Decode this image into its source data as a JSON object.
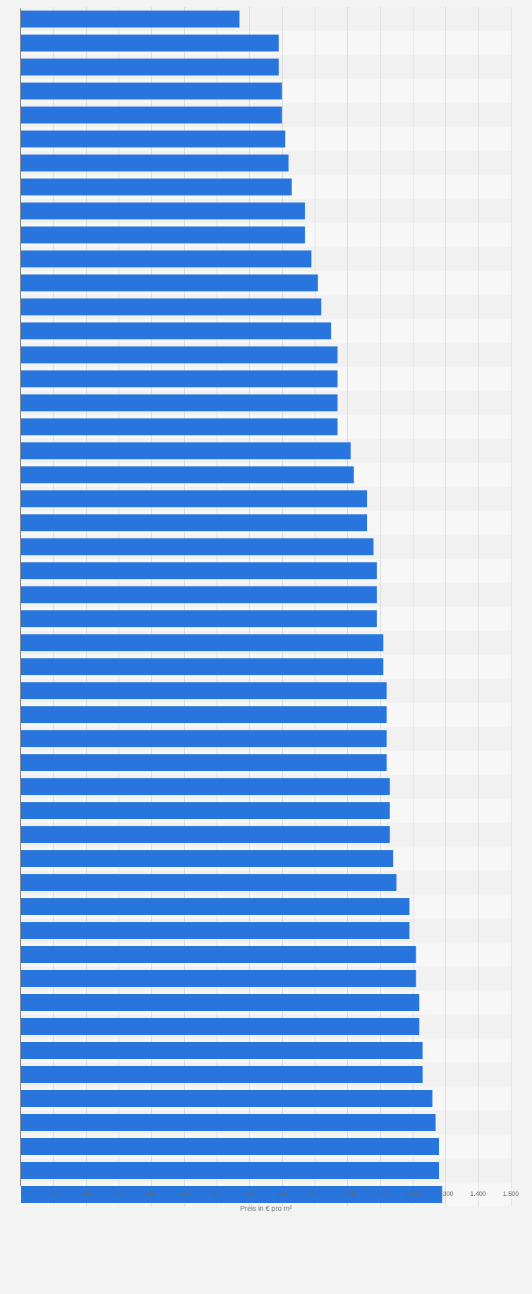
{
  "chart_data": {
    "type": "bar",
    "orientation": "horizontal",
    "xlabel": "Preis in € pro m²",
    "ylabel": "",
    "xlim": [
      0,
      1500
    ],
    "x_ticks": [
      {
        "value": 0,
        "label": "0"
      },
      {
        "value": 100,
        "label": "100"
      },
      {
        "value": 200,
        "label": "200"
      },
      {
        "value": 300,
        "label": "300"
      },
      {
        "value": 400,
        "label": "400"
      },
      {
        "value": 500,
        "label": "500"
      },
      {
        "value": 600,
        "label": "600"
      },
      {
        "value": 700,
        "label": "700"
      },
      {
        "value": 800,
        "label": "800"
      },
      {
        "value": 900,
        "label": "900"
      },
      {
        "value": 1000,
        "label": "1.000"
      },
      {
        "value": 1100,
        "label": "1.100"
      },
      {
        "value": 1200,
        "label": "1.200"
      },
      {
        "value": 1300,
        "label": "1.300"
      },
      {
        "value": 1400,
        "label": "1.400"
      },
      {
        "value": 1500,
        "label": "1.500"
      }
    ],
    "grid": true,
    "bar_color": "#2876dd",
    "values": [
      670,
      790,
      790,
      800,
      800,
      810,
      820,
      830,
      870,
      870,
      890,
      910,
      920,
      950,
      970,
      970,
      970,
      970,
      1010,
      1020,
      1060,
      1060,
      1080,
      1090,
      1090,
      1090,
      1110,
      1110,
      1120,
      1120,
      1120,
      1120,
      1130,
      1130,
      1130,
      1140,
      1150,
      1190,
      1190,
      1210,
      1210,
      1220,
      1220,
      1230,
      1230,
      1260,
      1270,
      1280,
      1280,
      1290
    ]
  }
}
